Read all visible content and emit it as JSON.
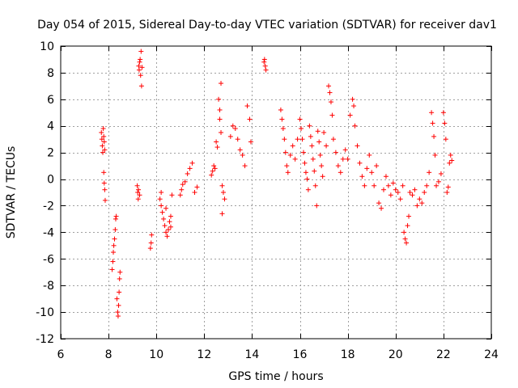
{
  "chart_data": {
    "type": "scatter",
    "title": "Day 054 of 2015, Sidereal Day-to-day VTEC variation (SDTVAR) for receiver dav1",
    "xlabel": "GPS time / hours",
    "ylabel": "SDTVAR / TECUs",
    "xlim": [
      6,
      24
    ],
    "ylim": [
      -12,
      10
    ],
    "xticks": [
      6,
      8,
      10,
      12,
      14,
      16,
      18,
      20,
      22,
      24
    ],
    "yticks": [
      -12,
      -10,
      -8,
      -6,
      -4,
      -2,
      0,
      2,
      4,
      6,
      8,
      10
    ],
    "grid": true,
    "marker": "+",
    "color": "#ff0000",
    "series": [
      {
        "name": "SDTVAR",
        "x": [
          7.7,
          7.72,
          7.74,
          7.76,
          7.78,
          7.8,
          7.82,
          7.84,
          7.8,
          7.82,
          7.84,
          7.86,
          8.15,
          8.18,
          8.2,
          8.22,
          8.25,
          8.28,
          8.3,
          8.32,
          8.35,
          8.38,
          8.4,
          8.42,
          8.44,
          8.46,
          8.48,
          9.2,
          9.22,
          9.24,
          9.26,
          9.28,
          9.3,
          9.32,
          9.34,
          9.36,
          9.38,
          9.4,
          9.25,
          9.3,
          9.75,
          9.78,
          9.8,
          10.15,
          10.2,
          10.25,
          10.3,
          10.35,
          10.4,
          10.45,
          10.5,
          10.55,
          10.6,
          10.65,
          10.2,
          10.4,
          10.6,
          11.0,
          11.05,
          11.1,
          11.2,
          11.3,
          11.4,
          11.5,
          11.6,
          11.7,
          12.3,
          12.35,
          12.4,
          12.45,
          12.5,
          12.55,
          12.6,
          12.65,
          12.7,
          12.75,
          12.8,
          12.85,
          12.65,
          12.7,
          12.75,
          13.1,
          13.2,
          13.3,
          13.4,
          13.5,
          13.6,
          13.7,
          13.8,
          13.9,
          13.95,
          14.5,
          14.52,
          14.55,
          14.58,
          15.2,
          15.25,
          15.3,
          15.35,
          15.4,
          15.45,
          15.5,
          15.6,
          15.7,
          15.8,
          15.9,
          16.0,
          16.05,
          16.1,
          16.15,
          16.2,
          16.25,
          16.3,
          16.35,
          16.4,
          16.45,
          16.5,
          16.55,
          16.6,
          16.65,
          16.7,
          16.75,
          16.8,
          16.85,
          16.9,
          16.95,
          17.0,
          17.1,
          17.2,
          17.25,
          17.3,
          17.35,
          17.4,
          17.5,
          17.6,
          17.7,
          17.8,
          17.9,
          18.0,
          18.1,
          18.2,
          18.25,
          18.3,
          18.4,
          18.5,
          18.6,
          18.7,
          18.8,
          18.9,
          19.0,
          19.1,
          19.2,
          19.3,
          19.4,
          19.5,
          19.6,
          19.7,
          19.8,
          19.9,
          20.0,
          20.1,
          20.2,
          20.3,
          20.35,
          20.4,
          20.45,
          20.5,
          20.55,
          20.6,
          20.7,
          20.8,
          20.9,
          21.0,
          21.1,
          21.2,
          21.3,
          21.4,
          21.5,
          21.55,
          21.6,
          21.65,
          21.7,
          21.8,
          21.9,
          22.0,
          22.05,
          22.1,
          22.15,
          22.2,
          22.25,
          22.3,
          22.35
        ],
        "y": [
          3.5,
          3.0,
          2.5,
          2.0,
          3.8,
          3.2,
          2.8,
          2.2,
          0.5,
          -0.3,
          -0.8,
          -1.6,
          -6.8,
          -6.2,
          -5.5,
          -5.0,
          -4.5,
          -3.8,
          -3.0,
          -2.8,
          -9.0,
          -10.0,
          -10.3,
          -9.5,
          -8.5,
          -7.5,
          -7.0,
          -0.5,
          -1.0,
          -1.5,
          8.5,
          8.2,
          8.8,
          9.0,
          7.8,
          9.6,
          7.0,
          8.4,
          -0.8,
          -1.2,
          -5.2,
          -4.8,
          -4.2,
          -1.5,
          -2.0,
          -2.5,
          -3.0,
          -3.5,
          -4.0,
          -4.3,
          -3.8,
          -3.2,
          -2.8,
          -1.2,
          -1.0,
          -2.2,
          -3.6,
          -1.2,
          -0.8,
          -0.4,
          -0.2,
          0.4,
          0.8,
          1.2,
          -1.0,
          -0.6,
          0.3,
          0.6,
          1.0,
          0.8,
          2.8,
          2.4,
          6.0,
          5.2,
          7.2,
          -0.5,
          -1.0,
          -1.5,
          4.5,
          3.5,
          -2.6,
          3.2,
          4.0,
          3.8,
          3.0,
          2.2,
          1.8,
          1.0,
          5.5,
          4.5,
          2.8,
          8.8,
          9.0,
          8.5,
          8.2,
          5.2,
          4.5,
          3.8,
          3.0,
          2.0,
          1.0,
          0.5,
          1.8,
          2.5,
          1.5,
          3.0,
          4.5,
          3.8,
          3.0,
          2.0,
          1.2,
          0.5,
          0.0,
          -0.8,
          4.0,
          3.2,
          2.5,
          1.5,
          0.6,
          -0.5,
          -2.0,
          3.6,
          2.8,
          1.8,
          1.0,
          0.2,
          3.5,
          2.5,
          7.0,
          6.5,
          5.8,
          4.8,
          3.0,
          2.0,
          1.0,
          0.5,
          1.5,
          2.2,
          1.5,
          4.8,
          6.0,
          5.5,
          4.0,
          2.5,
          1.2,
          0.2,
          -0.5,
          0.8,
          1.8,
          0.5,
          -0.5,
          1.0,
          -1.8,
          -2.2,
          -0.8,
          0.2,
          -0.5,
          -1.2,
          -0.3,
          -0.8,
          -1.0,
          -1.5,
          -0.5,
          -4.0,
          -4.5,
          -4.8,
          -3.5,
          -2.8,
          -1.0,
          -1.2,
          -0.8,
          -2.0,
          -1.5,
          -1.8,
          -1.0,
          -0.5,
          0.5,
          5.0,
          4.2,
          3.2,
          1.8,
          -0.5,
          -0.2,
          0.4,
          5.0,
          4.2,
          3.0,
          -1.0,
          -0.6,
          1.2,
          1.8,
          1.4
        ]
      }
    ]
  }
}
